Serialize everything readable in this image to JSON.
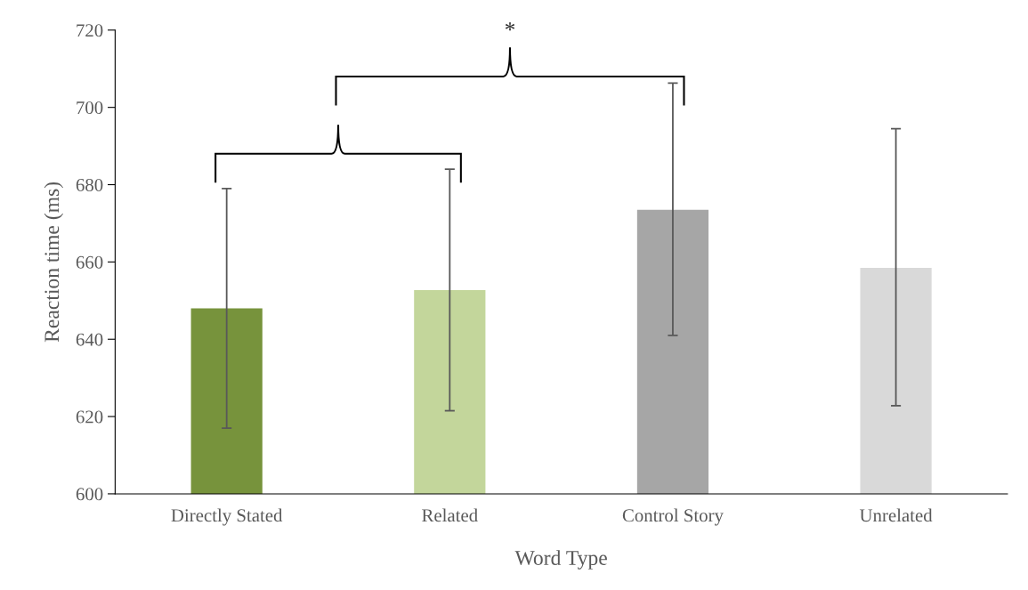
{
  "chart_data": {
    "type": "bar",
    "xlabel": "Word Type",
    "ylabel": "Reaction time (ms)",
    "categories": [
      "Directly Stated",
      "Related",
      "Control Story",
      "Unrelated"
    ],
    "values": [
      648,
      652.7,
      673.5,
      658.5
    ],
    "colors": [
      "#77933c",
      "#c3d69b",
      "#a6a6a6",
      "#d9d9d9"
    ],
    "errors": [
      [
        617,
        679
      ],
      [
        621.5,
        684
      ],
      [
        641,
        706.3
      ],
      [
        622.8,
        694.5
      ]
    ],
    "ylim": [
      600,
      720
    ],
    "yticks": [
      600,
      620,
      640,
      660,
      680,
      700,
      720
    ],
    "annotations": [
      "*"
    ],
    "grid": false,
    "legend": false
  }
}
